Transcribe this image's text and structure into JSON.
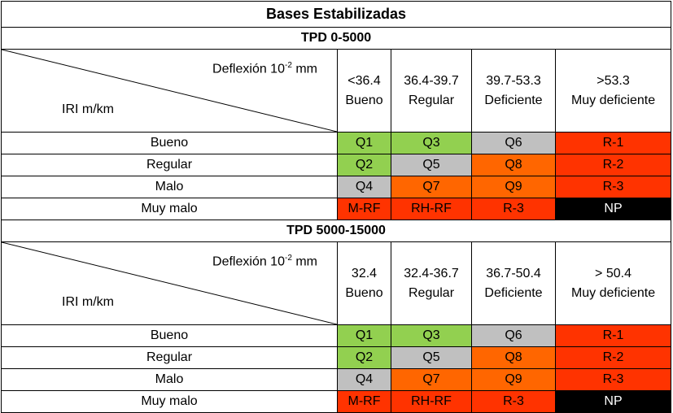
{
  "title": "Bases Estabilizadas",
  "colors": {
    "green": "#92d050",
    "gray": "#c0c0c0",
    "orange": "#ff6600",
    "red": "#ff3300",
    "black": "#000000"
  },
  "sections": [
    {
      "tpd_label": "TPD 0-5000",
      "deflexion_label": "Deflexión 10",
      "deflexion_exp": "-2",
      "deflexion_unit": " mm",
      "iri_label": "IRI m/km",
      "columns": [
        {
          "range": "<36.4",
          "name": "Bueno"
        },
        {
          "range": "36.4-39.7",
          "name": "Regular"
        },
        {
          "range": "39.7-53.3",
          "name": "Deficiente"
        },
        {
          "range": ">53.3",
          "name": "Muy deficiente"
        }
      ],
      "rows": [
        {
          "label": "Bueno",
          "cells": [
            {
              "v": "Q1",
              "c": "green"
            },
            {
              "v": "Q3",
              "c": "green"
            },
            {
              "v": "Q6",
              "c": "gray"
            },
            {
              "v": "R-1",
              "c": "red"
            }
          ]
        },
        {
          "label": "Regular",
          "cells": [
            {
              "v": "Q2",
              "c": "green"
            },
            {
              "v": "Q5",
              "c": "gray"
            },
            {
              "v": "Q8",
              "c": "orange"
            },
            {
              "v": "R-2",
              "c": "red"
            }
          ]
        },
        {
          "label": "Malo",
          "cells": [
            {
              "v": "Q4",
              "c": "gray"
            },
            {
              "v": "Q7",
              "c": "orange"
            },
            {
              "v": "Q9",
              "c": "orange"
            },
            {
              "v": "R-3",
              "c": "red"
            }
          ]
        },
        {
          "label": "Muy malo",
          "cells": [
            {
              "v": "M-RF",
              "c": "red"
            },
            {
              "v": "RH-RF",
              "c": "red"
            },
            {
              "v": "R-3",
              "c": "red"
            },
            {
              "v": "NP",
              "c": "black"
            }
          ]
        }
      ]
    },
    {
      "tpd_label": "TPD 5000-15000",
      "deflexion_label": "Deflexión 10",
      "deflexion_exp": "-2",
      "deflexion_unit": " mm",
      "iri_label": "IRI m/km",
      "columns": [
        {
          "range": "32.4",
          "name": "Bueno"
        },
        {
          "range": "32.4-36.7",
          "name": "Regular"
        },
        {
          "range": "36.7-50.4",
          "name": "Deficiente"
        },
        {
          "range": "> 50.4",
          "name": "Muy deficiente"
        }
      ],
      "rows": [
        {
          "label": "Bueno",
          "cells": [
            {
              "v": "Q1",
              "c": "green"
            },
            {
              "v": "Q3",
              "c": "green"
            },
            {
              "v": "Q6",
              "c": "gray"
            },
            {
              "v": "R-1",
              "c": "red"
            }
          ]
        },
        {
          "label": "Regular",
          "cells": [
            {
              "v": "Q2",
              "c": "green"
            },
            {
              "v": "Q5",
              "c": "gray"
            },
            {
              "v": "Q8",
              "c": "orange"
            },
            {
              "v": "R-2",
              "c": "red"
            }
          ]
        },
        {
          "label": "Malo",
          "cells": [
            {
              "v": "Q4",
              "c": "gray"
            },
            {
              "v": "Q7",
              "c": "orange"
            },
            {
              "v": "Q9",
              "c": "orange"
            },
            {
              "v": "R-3",
              "c": "red"
            }
          ]
        },
        {
          "label": "Muy malo",
          "cells": [
            {
              "v": "M-RF",
              "c": "red"
            },
            {
              "v": "RH-RF",
              "c": "red"
            },
            {
              "v": "R-3",
              "c": "red"
            },
            {
              "v": "NP",
              "c": "black"
            }
          ]
        }
      ]
    }
  ]
}
